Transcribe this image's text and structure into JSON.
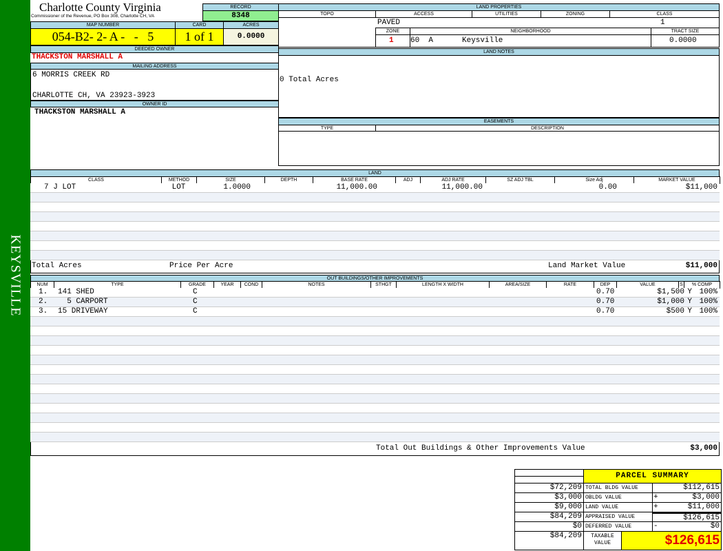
{
  "sidebar": {
    "label": "KEYSVILLE",
    "color": "#008000"
  },
  "header": {
    "title": "Charlotte County Virginia",
    "subtitle": "Commissioner of the Revenue, PO Box 308, Charlotte CH, VA"
  },
  "record": {
    "label": "RECORD",
    "value": "8348"
  },
  "map": {
    "map_label": "MAP NUMBER",
    "map_value": "054-B2- 2- A -   -   5",
    "card_label": "CARD",
    "card_value": "1 of 1",
    "acres_label": "ACRES",
    "acres_value": "0.0000"
  },
  "owner": {
    "deeded_label": "DEEDED OWNER",
    "deeded_value": "THACKSTON MARSHALL A",
    "mailing_label": "MAILING ADDRESS",
    "address1": "6 MORRIS CREEK RD",
    "address2": "CHARLOTTE CH, VA 23923-3923",
    "owner_id_label": "OWNER ID",
    "owner_id_value": "THACKSTON MARSHALL A"
  },
  "land_properties": {
    "title": "LAND PROPERTIES",
    "topo": "TOPO",
    "access": "ACCESS",
    "utilities": "UTILITIES",
    "zoning": "ZONING",
    "class": "CLASS",
    "access_value": "PAVED",
    "class_value": "1",
    "zone_label": "ZONE",
    "neighborhood_label": "NEIGHBORHOOD",
    "tract_label": "TRACT SIZE",
    "zone_value": "1",
    "neighborhood_code": "60  A",
    "neighborhood_value": "Keysville",
    "tract_value": "0.0000"
  },
  "land_notes": {
    "title": "LAND NOTES",
    "text": "0 Total Acres"
  },
  "easements": {
    "title": "EASEMENTS",
    "type": "TYPE",
    "description": "DESCRIPTION"
  },
  "land": {
    "title": "LAND",
    "columns": [
      "CLASS",
      "METHOD",
      "SIZE",
      "DEPTH",
      "BASE RATE",
      "ADJ",
      "ADJ RATE",
      "SZ ADJ TBL",
      "Size Adj",
      "MARKET VALUE"
    ],
    "rows": [
      [
        "7 J LOT",
        "LOT",
        "1.0000",
        "",
        "11,000.00",
        "",
        "11,000.00",
        "",
        "0.00",
        "$11,000"
      ]
    ],
    "total_acres_label": "Total Acres",
    "price_per_acre_label": "Price Per Acre",
    "market_value_label": "Land Market Value",
    "market_value": "$11,000"
  },
  "outbuildings": {
    "title": "OUT BUILDINGS/OTHER IMPROVEMENTS",
    "columns": [
      "NUM",
      "TYPE",
      "GRADE",
      "YEAR",
      "COND",
      "NOTES",
      "STHGT",
      "LENGTH X WIDTH",
      "AREA/SIZE",
      "RATE",
      "DEP",
      "VALUE",
      "S",
      "% COMP"
    ],
    "rows": [
      [
        "1.",
        "141 SHED",
        "C",
        "",
        "",
        "",
        "",
        "",
        "",
        "",
        "0.70",
        "$1,500",
        "Y",
        "100%"
      ],
      [
        "2.",
        "  5 CARPORT",
        "C",
        "",
        "",
        "",
        "",
        "",
        "",
        "",
        "0.70",
        "$1,000",
        "Y",
        "100%"
      ],
      [
        "3.",
        "15 DRIVEWAY",
        "C",
        "",
        "",
        "",
        "",
        "",
        "",
        "",
        "0.70",
        "$500",
        "Y",
        "100%"
      ]
    ],
    "total_label": "Total Out Buildings & Other Improvements Value",
    "total_value": "$3,000"
  },
  "parcel_summary": {
    "title": "PARCEL SUMMARY",
    "rows": [
      {
        "prev": "$72,209",
        "label": "TOTAL BLDG VALUE",
        "op": "",
        "value": "$112,615"
      },
      {
        "prev": "$3,000",
        "label": "OBLDG VALUE",
        "op": "+",
        "value": "$3,000"
      },
      {
        "prev": "$9,000",
        "label": "LAND VALUE",
        "op": "+",
        "value": "$11,000"
      },
      {
        "prev": "$84,209",
        "label": "APPRAISED VALUE",
        "op": "",
        "value": "$126,615"
      },
      {
        "prev": "$0",
        "label": "DEFERRED VALUE",
        "op": "-",
        "value": "$0"
      }
    ],
    "taxable_prev": "$84,209",
    "taxable_label": "TAXABLE VALUE",
    "taxable_value": "$126,615"
  }
}
